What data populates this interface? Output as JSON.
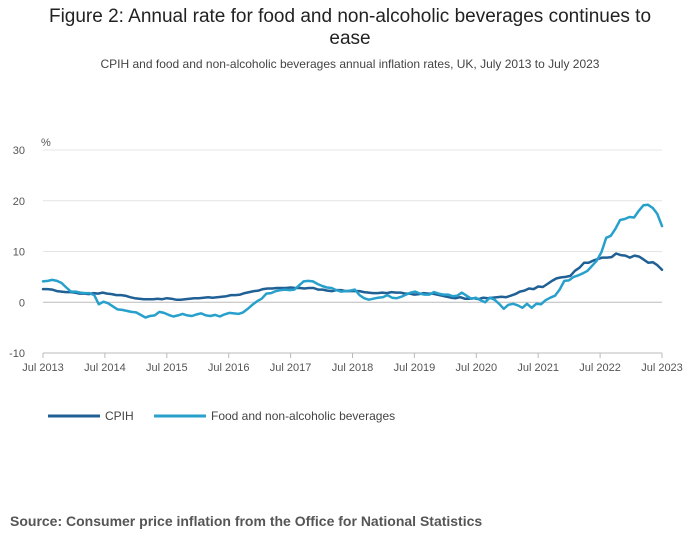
{
  "title_line1": "Figure 2: Annual rate for food and non-alcoholic beverages continues to",
  "title_line2": "ease",
  "subtitle": "CPIH and food and non-alcoholic beverages annual inflation rates, UK, July 2013 to July 2023",
  "source": "Source: Consumer price inflation from the Office for National Statistics",
  "chart_data": {
    "type": "line",
    "ylabel": "%",
    "ylim": [
      -10,
      30
    ],
    "yticks": [
      -10,
      0,
      10,
      20,
      30
    ],
    "x_start": "Jul 2013",
    "x_end": "Jul 2023",
    "xticks": [
      "Jul 2013",
      "Jul 2014",
      "Jul 2015",
      "Jul 2016",
      "Jul 2017",
      "Jul 2018",
      "Jul 2019",
      "Jul 2020",
      "Jul 2021",
      "Jul 2022",
      "Jul 2023"
    ],
    "grid": "horizontal",
    "legend": "bottom-left",
    "series": [
      {
        "name": "CPIH",
        "color": "#206095",
        "values": [
          2.6,
          2.6,
          2.5,
          2.2,
          2.1,
          2.0,
          2.0,
          1.9,
          1.7,
          1.7,
          1.6,
          1.8,
          1.7,
          1.9,
          1.7,
          1.6,
          1.4,
          1.4,
          1.3,
          1.0,
          0.8,
          0.7,
          0.6,
          0.6,
          0.6,
          0.7,
          0.6,
          0.8,
          0.7,
          0.5,
          0.5,
          0.6,
          0.7,
          0.8,
          0.8,
          0.9,
          1.0,
          0.9,
          1.0,
          1.1,
          1.2,
          1.4,
          1.4,
          1.5,
          1.8,
          2.0,
          2.2,
          2.3,
          2.6,
          2.7,
          2.7,
          2.8,
          2.8,
          2.8,
          2.9,
          2.8,
          2.8,
          2.7,
          2.8,
          2.8,
          2.5,
          2.5,
          2.3,
          2.2,
          2.4,
          2.4,
          2.2,
          2.2,
          2.2,
          2.2,
          2.0,
          1.9,
          1.8,
          1.8,
          1.9,
          1.8,
          2.0,
          1.9,
          1.9,
          1.7,
          1.7,
          1.5,
          1.6,
          1.8,
          1.7,
          1.7,
          1.5,
          1.3,
          1.1,
          0.9,
          0.8,
          1.0,
          0.7,
          0.7,
          0.8,
          0.6,
          0.9,
          0.8,
          0.9,
          1.0,
          1.1,
          1.0,
          1.3,
          1.6,
          2.1,
          2.3,
          2.7,
          2.6,
          3.1,
          3.0,
          3.6,
          4.2,
          4.7,
          4.9,
          5.0,
          5.2,
          6.2,
          6.8,
          7.8,
          7.8,
          8.2,
          8.5,
          8.8,
          8.8,
          8.9,
          9.6,
          9.3,
          9.2,
          8.8,
          9.2,
          9.0,
          8.4,
          7.8,
          7.9,
          7.3,
          6.4
        ]
      },
      {
        "name": "Food and non-alcoholic beverages",
        "color": "#27a0cc",
        "values": [
          4.1,
          4.2,
          4.4,
          4.2,
          3.8,
          2.9,
          2.1,
          2.1,
          1.9,
          1.8,
          1.8,
          1.4,
          -0.4,
          0.1,
          -0.2,
          -0.8,
          -1.4,
          -1.5,
          -1.7,
          -1.9,
          -2.0,
          -2.5,
          -3.0,
          -2.7,
          -2.6,
          -1.9,
          -2.1,
          -2.5,
          -2.8,
          -2.6,
          -2.3,
          -2.6,
          -2.7,
          -2.4,
          -2.2,
          -2.6,
          -2.7,
          -2.5,
          -2.8,
          -2.4,
          -2.1,
          -2.2,
          -2.3,
          -2.0,
          -1.3,
          -0.5,
          0.2,
          0.7,
          1.7,
          1.8,
          2.2,
          2.4,
          2.5,
          2.4,
          2.5,
          3.3,
          4.1,
          4.2,
          4.1,
          3.6,
          3.2,
          2.9,
          2.8,
          2.4,
          2.1,
          2.2,
          2.3,
          2.5,
          1.4,
          0.8,
          0.5,
          0.7,
          0.9,
          1.0,
          1.4,
          0.9,
          0.8,
          1.1,
          1.5,
          1.9,
          2.1,
          1.7,
          1.5,
          1.5,
          2.0,
          1.7,
          1.5,
          1.5,
          1.2,
          1.3,
          1.9,
          1.3,
          0.7,
          0.9,
          0.4,
          0.0,
          0.9,
          0.5,
          -0.3,
          -1.3,
          -0.5,
          -0.3,
          -0.6,
          -1.1,
          -0.3,
          -1.1,
          -0.3,
          -0.4,
          0.4,
          0.9,
          1.3,
          2.5,
          4.2,
          4.3,
          5.0,
          5.3,
          5.7,
          6.2,
          7.2,
          8.2,
          9.9,
          12.7,
          13.1,
          14.5,
          16.2,
          16.4,
          16.8,
          16.7,
          18.0,
          19.1,
          19.2,
          18.6,
          17.4,
          15.0
        ]
      }
    ]
  }
}
